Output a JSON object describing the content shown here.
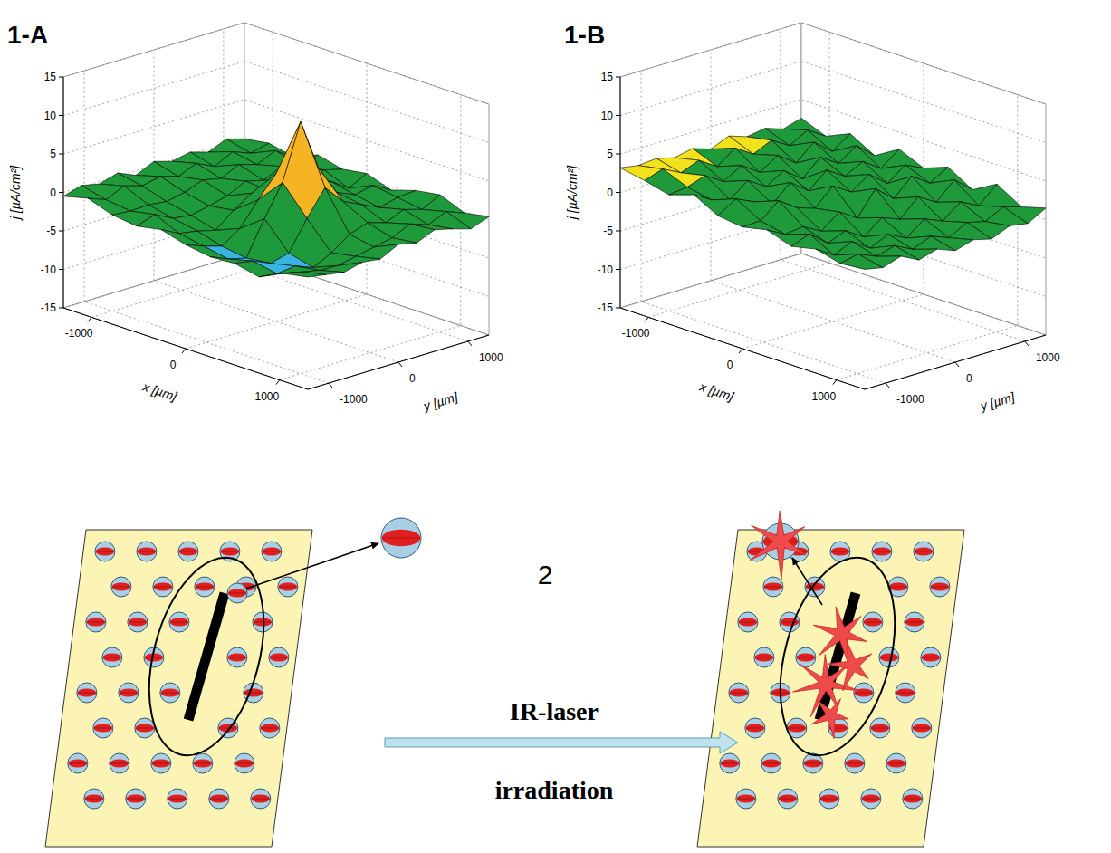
{
  "chart_data": [
    {
      "type": "surface",
      "title": "1-A",
      "xlabel": "x [µm]",
      "ylabel": "y [µm]",
      "zlabel": "j [µA/cm²]",
      "x": [
        -1300,
        -1040,
        -780,
        -520,
        -260,
        0,
        260,
        520,
        780,
        1040,
        1300
      ],
      "y": [
        -1300,
        -1040,
        -780,
        -520,
        -260,
        0,
        260,
        520,
        780,
        1040,
        1300
      ],
      "z": [
        [
          -0.5,
          0.3,
          -0.8,
          -1.2,
          -0.6,
          -1.5,
          -2.0,
          -1.8,
          -2.5,
          -1.0,
          -0.4
        ],
        [
          0.2,
          -0.6,
          -1.0,
          -0.4,
          -1.8,
          -2.4,
          -3.0,
          -2.2,
          -2.8,
          -1.5,
          -0.8
        ],
        [
          -0.3,
          0.5,
          -0.9,
          -1.6,
          -2.2,
          -3.1,
          -3.6,
          -3.2,
          -2.5,
          -2.0,
          -1.2
        ],
        [
          0.4,
          -0.2,
          -1.2,
          -1.9,
          -2.8,
          -1.5,
          0.8,
          -2.6,
          -3.4,
          -2.1,
          -0.6
        ],
        [
          -0.6,
          0.3,
          -0.7,
          -1.4,
          -0.9,
          1.5,
          4.8,
          1.2,
          -2.2,
          -1.6,
          -0.9
        ],
        [
          0.5,
          -0.4,
          0.2,
          -0.8,
          0.6,
          4.2,
          12.0,
          4.5,
          -0.5,
          -1.1,
          0.3
        ],
        [
          -0.2,
          0.6,
          -0.3,
          0.4,
          0.2,
          1.8,
          5.2,
          2.0,
          0.3,
          -0.6,
          -0.2
        ],
        [
          0.3,
          -0.5,
          0.8,
          -0.2,
          1.0,
          0.6,
          1.4,
          0.9,
          -0.4,
          0.5,
          0.8
        ],
        [
          -0.4,
          0.7,
          0.1,
          0.9,
          -0.3,
          1.1,
          0.4,
          -0.2,
          0.6,
          -0.3,
          0.2
        ],
        [
          0.6,
          -0.2,
          1.2,
          0.3,
          0.8,
          -0.5,
          0.9,
          0.4,
          -0.1,
          0.7,
          -0.5
        ],
        [
          -0.1,
          0.4,
          -0.3,
          1.0,
          0.2,
          0.7,
          -0.4,
          0.6,
          1.1,
          -0.2,
          0.4
        ]
      ],
      "xlim": [
        -1300,
        1300
      ],
      "ylim": [
        -1300,
        1300
      ],
      "zlim": [
        -15,
        15
      ],
      "xticks": [
        -1000,
        0,
        1000
      ],
      "yticks": [
        -1000,
        0,
        1000
      ],
      "zticks": [
        -15,
        -10,
        -5,
        0,
        5,
        10,
        15
      ],
      "grid": true
    },
    {
      "type": "surface",
      "title": "1-B",
      "xlabel": "x [µm]",
      "ylabel": "y [µm]",
      "zlabel": "j [µA/cm²]",
      "x": [
        -1300,
        -1040,
        -780,
        -520,
        -260,
        0,
        260,
        520,
        780,
        1040,
        1300
      ],
      "y": [
        -1300,
        -1040,
        -780,
        -520,
        -260,
        0,
        260,
        520,
        780,
        1040,
        1300
      ],
      "z": [
        [
          3.2,
          2.6,
          1.8,
          2.9,
          1.2,
          0.8,
          1.5,
          0.4,
          1.1,
          0.3,
          0.6
        ],
        [
          2.8,
          3.4,
          2.1,
          1.5,
          2.7,
          0.9,
          0.2,
          1.3,
          -0.4,
          0.8,
          0.1
        ],
        [
          3.0,
          2.2,
          2.9,
          0.8,
          1.6,
          2.8,
          0.5,
          -0.6,
          0.7,
          -0.2,
          0.9
        ],
        [
          2.4,
          3.1,
          1.4,
          2.6,
          0.6,
          1.2,
          -0.8,
          0.3,
          -0.9,
          0.5,
          -0.3
        ],
        [
          2.9,
          1.6,
          2.8,
          1.1,
          2.7,
          0.4,
          1.0,
          -1.2,
          0.2,
          -0.7,
          0.4
        ],
        [
          2.1,
          3.3,
          1.2,
          2.5,
          0.9,
          2.6,
          -0.5,
          0.6,
          -1.0,
          0.3,
          -0.5
        ],
        [
          3.1,
          1.8,
          2.7,
          0.7,
          2.9,
          1.1,
          2.6,
          -0.3,
          0.8,
          -0.6,
          0.2
        ],
        [
          2.3,
          2.9,
          1.0,
          2.8,
          1.4,
          2.7,
          0.6,
          1.9,
          -0.2,
          0.7,
          -0.4
        ],
        [
          2.7,
          1.5,
          3.0,
          1.3,
          2.6,
          0.8,
          2.8,
          0.5,
          1.6,
          0.1,
          0.6
        ],
        [
          1.9,
          2.8,
          1.1,
          2.9,
          1.0,
          2.5,
          1.2,
          2.7,
          0.4,
          1.3,
          0.2
        ],
        [
          2.6,
          1.3,
          2.7,
          0.9,
          2.8,
          1.4,
          2.6,
          0.7,
          2.5,
          0.6,
          1.5
        ]
      ],
      "xlim": [
        -1300,
        1300
      ],
      "ylim": [
        -1300,
        1300
      ],
      "zlim": [
        -15,
        15
      ],
      "xticks": [
        -1000,
        0,
        1000
      ],
      "yticks": [
        -1000,
        0,
        1000
      ],
      "zticks": [
        -15,
        -10,
        -5,
        0,
        5,
        10,
        15
      ],
      "grid": true
    }
  ],
  "diagram": {
    "step_label": "2",
    "arrow_top": "IR-laser",
    "arrow_bottom": "irradiation"
  }
}
